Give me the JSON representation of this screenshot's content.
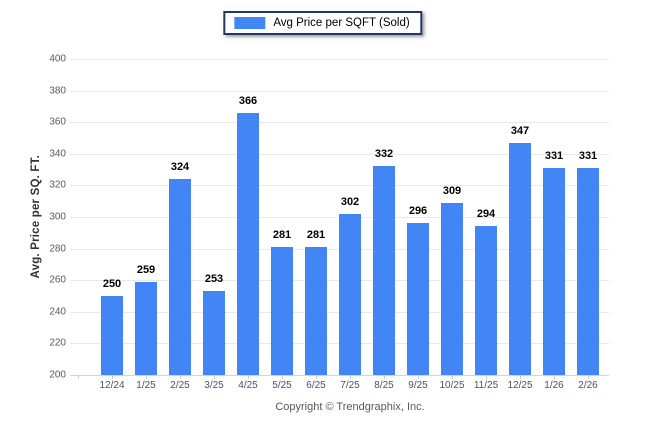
{
  "legend": {
    "label": "Avg Price per SQFT (Sold)",
    "swatch_color": "#4285f4"
  },
  "y_axis": {
    "title": "Avg. Price per SQ. FT.",
    "ticks": [
      400,
      380,
      360,
      340,
      320,
      300,
      280,
      260,
      240,
      220,
      200
    ]
  },
  "footer": {
    "copyright": "Copyright © Trendgraphix, Inc."
  },
  "colors": {
    "bar": "#4285f4",
    "legend_border": "#1f3864",
    "gridline": "#e9e9e9",
    "baseline": "#d4d4d4",
    "y_tick_text": "#595959",
    "x_tick_text": "#44546a",
    "value_label_text": "#000000",
    "copyright_text": "#595959"
  },
  "chart_data": {
    "type": "bar",
    "title": "",
    "legend": [
      "Avg Price per SQFT (Sold)"
    ],
    "legend_position": "top-center",
    "categories": [
      "12/24",
      "1/25",
      "2/25",
      "3/25",
      "4/25",
      "5/25",
      "6/25",
      "7/25",
      "8/25",
      "9/25",
      "10/25",
      "11/25",
      "12/25",
      "1/26",
      "2/26"
    ],
    "values": [
      250,
      259,
      324,
      253,
      366,
      281,
      281,
      302,
      332,
      296,
      309,
      294,
      347,
      331,
      331
    ],
    "xlabel": "",
    "ylabel": "Avg. Price per SQ. FT.",
    "ylim": [
      200,
      400
    ],
    "ytick_step": 20,
    "grid": "horizontal",
    "value_labels_shown": true,
    "bar_color": "#4285f4"
  }
}
